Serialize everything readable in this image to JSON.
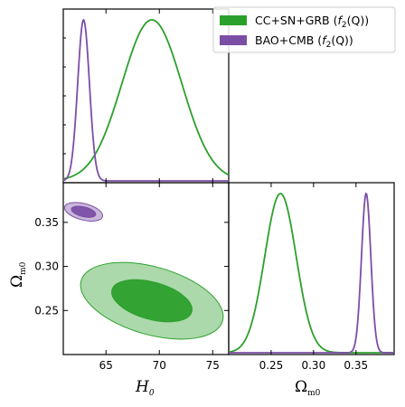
{
  "chart_data": {
    "type": "corner",
    "parameters": [
      "H0",
      "Omega_m0"
    ],
    "axis_labels": {
      "h0": "H",
      "h0_sub": "0",
      "om": "Ω",
      "om_sub": "m0"
    },
    "h0_range": [
      61,
      76.5
    ],
    "om_range": [
      0.2,
      0.395
    ],
    "h0_ticks": [
      "65",
      "70",
      "75"
    ],
    "om_ticks": [
      "0.25",
      "0.30",
      "0.35"
    ],
    "grid": false,
    "legend_position": "top-right",
    "series": [
      {
        "name": "CC+SN+GRB",
        "label_prefix": "CC+SN+GRB (",
        "label_func": "f",
        "label_sub": "2",
        "label_arg": "(Q))",
        "color": "#2ca02c",
        "h0_mean": 69.3,
        "h0_sigma": 2.8,
        "om_mean": 0.261,
        "om_sigma": 0.0185,
        "ellipse_1sigma": {
          "h0_half_width": 4.1,
          "om_half_height": 0.034
        },
        "ellipse_2sigma": {
          "h0_half_width": 7.2,
          "om_half_height": 0.062
        }
      },
      {
        "name": "BAO+CMB",
        "label_prefix": "BAO+CMB (",
        "label_func": "f",
        "label_sub": "2",
        "label_arg": "(Q))",
        "color": "#7b4ea6",
        "h0_mean": 62.9,
        "h0_sigma": 0.55,
        "om_mean": 0.362,
        "om_sigma": 0.0055,
        "ellipse_1sigma": {
          "h0_half_width": 1.3,
          "om_half_height": 0.009
        },
        "ellipse_2sigma": {
          "h0_half_width": 2.0,
          "om_half_height": 0.015
        }
      }
    ]
  }
}
